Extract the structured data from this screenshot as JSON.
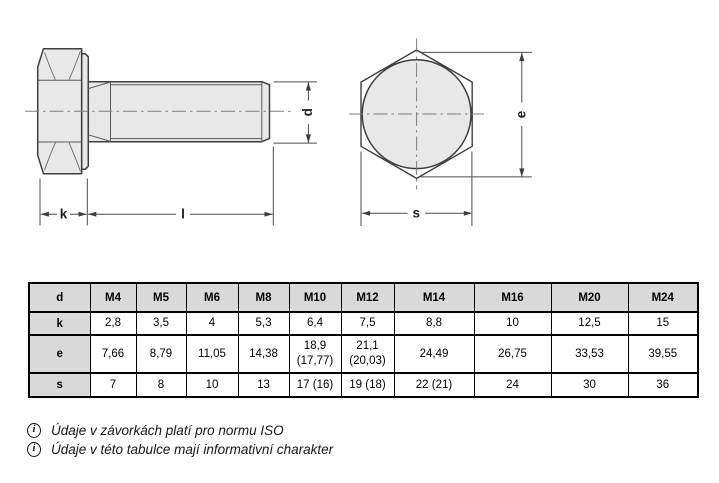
{
  "page": {
    "background": "#ffffff"
  },
  "drawing": {
    "labels": {
      "head_height": "k",
      "length": "l",
      "diameter": "d",
      "width_across_corners": "e",
      "width_across_flats": "s"
    },
    "fill_color": "#e8e8e8",
    "line_color": "#3e3e3e"
  },
  "table": {
    "header": [
      "d",
      "M4",
      "M5",
      "M6",
      "M8",
      "M10",
      "M12",
      "M14",
      "M16",
      "M20",
      "M24"
    ],
    "rows": [
      {
        "label": "k",
        "values": [
          "2,8",
          "3,5",
          "4",
          "5,3",
          "6,4",
          "7,5",
          "8,8",
          "10",
          "12,5",
          "15"
        ]
      },
      {
        "label": "e",
        "values": [
          "7,66",
          "8,79",
          "11,05",
          "14,38",
          "18,9\n(17,77)",
          "21,1\n(20,03)",
          "24,49",
          "26,75",
          "33,53",
          "39,55"
        ]
      },
      {
        "label": "s",
        "values": [
          "7",
          "8",
          "10",
          "13",
          "17 (16)",
          "19 (18)",
          "22 (21)",
          "24",
          "30",
          "36"
        ]
      }
    ],
    "header_bg": "#d9d9d9"
  },
  "footnotes": [
    {
      "icon": "i",
      "text": "Údaje v závorkách platí pro normu ISO"
    },
    {
      "icon": "i",
      "text": "Údaje v této tabulce mají informativní charakter"
    }
  ]
}
